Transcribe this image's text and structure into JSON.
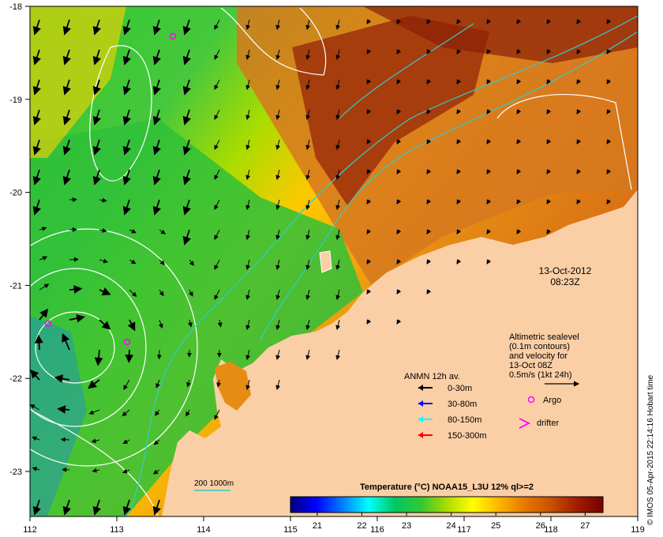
{
  "axes": {
    "x_ticks": [
      "112",
      "113",
      "114",
      "115",
      "116",
      "117",
      "118",
      "119"
    ],
    "y_ticks": [
      "-18",
      "-19",
      "-20",
      "-21",
      "-22",
      "-23"
    ]
  },
  "timestamp": {
    "date": "13-Oct-2012",
    "time": "08:23Z"
  },
  "altimetry_note": [
    "Altimetric sealevel",
    "(0.1m contours)",
    "and velocity for",
    "13-Oct 08Z",
    "0.5m/s (1kt 24h)"
  ],
  "anmn": {
    "title": "ANMN 12h av.",
    "items": [
      {
        "label": "0-30m",
        "color": "#000000"
      },
      {
        "label": "30-80m",
        "color": "#0000ff"
      },
      {
        "label": "80-150m",
        "color": "#00ffff"
      },
      {
        "label": "150-300m",
        "color": "#ff0000"
      }
    ]
  },
  "markers": {
    "argo": "Argo",
    "drifter": "drifter",
    "argo_color": "#ff00ff",
    "drifter_color": "#ff00ff"
  },
  "bathymetry_legend": "200  1000m",
  "colorbar": {
    "title": "Temperature (°C) NOAA15_L3U 12% ql>=2",
    "ticks": [
      "21",
      "22",
      "23",
      "24",
      "25",
      "26",
      "27"
    ],
    "min": 20.4,
    "max": 27.4,
    "colors": [
      "#00007f",
      "#0000ff",
      "#007fff",
      "#00ffff",
      "#00c864",
      "#32c832",
      "#aadc00",
      "#ffff00",
      "#ffb400",
      "#e67800",
      "#c85000",
      "#a01e00",
      "#780000"
    ]
  },
  "credit": "© IMOS 05-Apr-2015 22:14:16 Hobart time",
  "colors": {
    "land": "#fbcfa6",
    "contour": "#ffffff",
    "bathy": "#33cccc"
  }
}
